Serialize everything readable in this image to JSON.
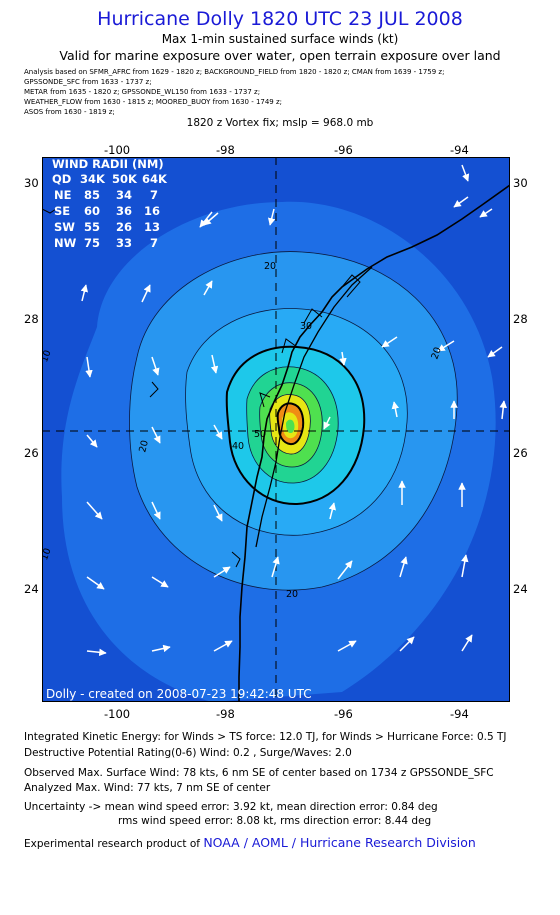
{
  "header": {
    "title": "Hurricane Dolly 1820 UTC 23 JUL 2008",
    "subtitle": "Max 1-min sustained surface winds (kt)",
    "valid_note": "Valid for marine exposure over water, open terrain exposure over land",
    "sources": [
      "Analysis based on  SFMR_AFRC from 1629 - 1820 z;  BACKGROUND_FIELD from 1820 - 1820 z;  CMAN from 1639 - 1759 z;",
      "GPSSONDE_SFC from 1633 - 1737 z;",
      "METAR from 1635 - 1820 z;  GPSSONDE_WL150 from 1633 - 1737 z;",
      "WEATHER_FLOW from 1630 - 1815 z;   MOORED_BUOY from 1630 - 1749 z;",
      "ASOS from 1630 - 1819 z;"
    ],
    "vortex_fix": "1820 z Vortex fix; mslp = 968.0 mb"
  },
  "map": {
    "lon_ticks": [
      "-100",
      "-98",
      "-96",
      "-94"
    ],
    "lat_ticks": [
      "30",
      "28",
      "26",
      "24"
    ],
    "center_lon": -97.3,
    "center_lat": 26.35,
    "contour_labels": [
      "10",
      "10",
      "20",
      "20",
      "20",
      "20",
      "30",
      "40",
      "50"
    ],
    "credit": "Dolly - created on 2008-07-23 19:42:48 UTC",
    "wind_radii": {
      "title": "WIND RADII (NM)",
      "header": [
        "QD",
        "34K",
        "50K",
        "64K"
      ],
      "rows": [
        [
          "NE",
          "85",
          "34",
          "7"
        ],
        [
          "SE",
          "60",
          "36",
          "16"
        ],
        [
          "SW",
          "55",
          "26",
          "13"
        ],
        [
          "NW",
          "75",
          "33",
          "7"
        ]
      ]
    },
    "colors": {
      "ocean_dark": "#1450d2",
      "blue1": "#1e6ee6",
      "blue2": "#2896f0",
      "blue3": "#28aaf5",
      "cyan": "#1ec8ea",
      "green1": "#21d493",
      "green2": "#4fe04f",
      "yellow": "#e6e614",
      "orange": "#f08c14"
    }
  },
  "footer": {
    "ike_line": "Integrated Kinetic Energy:  for Winds > TS force: 12.0 TJ,  for Winds > Hurricane Force: 0.5 TJ",
    "dpr_line": "Destructive Potential Rating(0-6)   Wind: 0.2 , Surge/Waves: 2.0",
    "observed_line": "Observed Max. Surface Wind: 78 kts, 6 nm SE of center based on 1734 z GPSSONDE_SFC",
    "analyzed_line": "Analyzed Max. Wind: 77 kts, 7 nm SE of center",
    "uncertainty_line": "Uncertainty -> mean wind speed error: 3.92 kt,   mean direction error: 0.84 deg",
    "rms_line": "rms wind speed error: 8.08 kt,   rms direction error: 8.44 deg",
    "product_prefix": "Experimental research product of",
    "product_org": "NOAA / AOML / Hurricane Research Division"
  }
}
